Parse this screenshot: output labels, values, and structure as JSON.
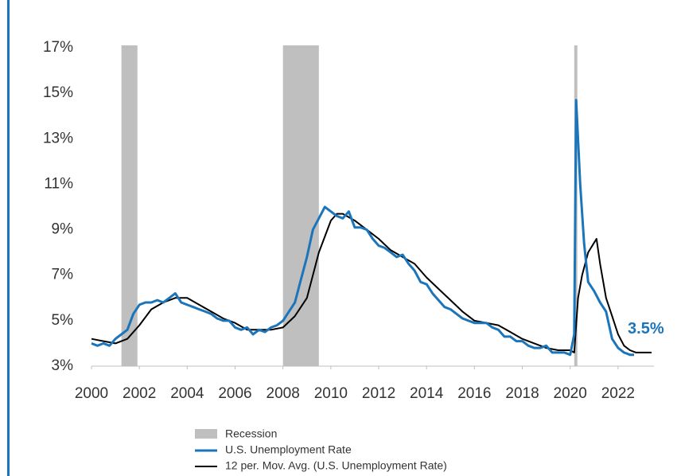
{
  "chart_data": {
    "type": "line",
    "xlim": [
      2000,
      2023.5
    ],
    "xticks": [
      2000,
      2002,
      2004,
      2006,
      2008,
      2010,
      2012,
      2014,
      2016,
      2018,
      2020,
      2022
    ],
    "ylim": [
      3,
      17
    ],
    "yticks": [
      {
        "value": 3,
        "label": "3%"
      },
      {
        "value": 5,
        "label": "5%"
      },
      {
        "value": 7,
        "label": "7%"
      },
      {
        "value": 9,
        "label": "9%"
      },
      {
        "value": 11,
        "label": "11%"
      },
      {
        "value": 13,
        "label": "13%"
      },
      {
        "value": 15,
        "label": "15%"
      },
      {
        "value": 17,
        "label": "17%"
      }
    ],
    "recession": {
      "name": "Recession",
      "color": "#bfbfbf",
      "ranges": [
        [
          2001.25,
          2001.92
        ],
        [
          2008.0,
          2009.5
        ],
        [
          2020.17,
          2020.3
        ]
      ]
    },
    "series": [
      {
        "name": "U.S. Unemployment Rate",
        "color": "#1b75bb",
        "x": [
          2000.0,
          2000.25,
          2000.5,
          2000.75,
          2001.0,
          2001.25,
          2001.5,
          2001.75,
          2002.0,
          2002.25,
          2002.5,
          2002.75,
          2003.0,
          2003.25,
          2003.5,
          2003.75,
          2004.0,
          2004.25,
          2004.5,
          2004.75,
          2005.0,
          2005.25,
          2005.5,
          2005.75,
          2006.0,
          2006.25,
          2006.5,
          2006.75,
          2007.0,
          2007.25,
          2007.5,
          2007.75,
          2008.0,
          2008.25,
          2008.5,
          2008.75,
          2009.0,
          2009.25,
          2009.5,
          2009.75,
          2010.0,
          2010.25,
          2010.5,
          2010.75,
          2011.0,
          2011.25,
          2011.5,
          2011.75,
          2012.0,
          2012.25,
          2012.5,
          2012.75,
          2013.0,
          2013.25,
          2013.5,
          2013.75,
          2014.0,
          2014.25,
          2014.5,
          2014.75,
          2015.0,
          2015.25,
          2015.5,
          2015.75,
          2016.0,
          2016.25,
          2016.5,
          2016.75,
          2017.0,
          2017.25,
          2017.5,
          2017.75,
          2018.0,
          2018.25,
          2018.5,
          2018.75,
          2019.0,
          2019.25,
          2019.5,
          2019.75,
          2020.0,
          2020.17,
          2020.25,
          2020.42,
          2020.58,
          2020.75,
          2021.0,
          2021.25,
          2021.5,
          2021.75,
          2022.0,
          2022.25,
          2022.5,
          2022.67
        ],
        "values": [
          4.0,
          3.9,
          4.0,
          3.9,
          4.2,
          4.4,
          4.6,
          5.3,
          5.7,
          5.8,
          5.8,
          5.9,
          5.8,
          6.0,
          6.2,
          5.8,
          5.7,
          5.6,
          5.5,
          5.4,
          5.3,
          5.1,
          5.0,
          5.0,
          4.7,
          4.6,
          4.7,
          4.4,
          4.6,
          4.5,
          4.7,
          4.8,
          5.0,
          5.4,
          5.8,
          6.8,
          7.8,
          9.0,
          9.5,
          10.0,
          9.8,
          9.6,
          9.5,
          9.8,
          9.1,
          9.1,
          9.0,
          8.6,
          8.3,
          8.2,
          8.0,
          7.8,
          7.9,
          7.5,
          7.2,
          6.7,
          6.6,
          6.2,
          5.9,
          5.6,
          5.5,
          5.3,
          5.1,
          5.0,
          4.9,
          4.9,
          4.9,
          4.7,
          4.6,
          4.3,
          4.3,
          4.1,
          4.1,
          3.9,
          3.8,
          3.8,
          3.9,
          3.6,
          3.6,
          3.6,
          3.5,
          4.4,
          14.7,
          11.0,
          8.4,
          6.7,
          6.3,
          5.8,
          5.4,
          4.2,
          3.8,
          3.6,
          3.5,
          3.5
        ],
        "value_labels": [
          null,
          null,
          null,
          null,
          null,
          null,
          null,
          null,
          null,
          null,
          null,
          null,
          null,
          null,
          null,
          null,
          null,
          null,
          null,
          null,
          null,
          null,
          null,
          null,
          null,
          null,
          null,
          null,
          null,
          null,
          null,
          null,
          null,
          null,
          null,
          null,
          null,
          null,
          null,
          null,
          null,
          null,
          null,
          null,
          null,
          null,
          null,
          null,
          null,
          null,
          null,
          null,
          null,
          null,
          null,
          null,
          null,
          null,
          null,
          null,
          null,
          null,
          null,
          null,
          null,
          null,
          null,
          null,
          null,
          null,
          null,
          null,
          null,
          null,
          null,
          null,
          null,
          null,
          null,
          null,
          null,
          null,
          null,
          null,
          null,
          null,
          null,
          null,
          null,
          null,
          null,
          null,
          null,
          "3.5%"
        ]
      },
      {
        "name": "12 per. Mov. Avg. (U.S. Unemployment Rate)",
        "color": "#000000",
        "x": [
          2000.0,
          2000.5,
          2001.0,
          2001.5,
          2002.0,
          2002.5,
          2003.0,
          2003.5,
          2004.0,
          2004.5,
          2005.0,
          2005.5,
          2006.0,
          2006.5,
          2007.0,
          2007.5,
          2008.0,
          2008.5,
          2009.0,
          2009.5,
          2010.0,
          2010.25,
          2010.5,
          2011.0,
          2011.5,
          2012.0,
          2012.5,
          2013.0,
          2013.5,
          2014.0,
          2014.5,
          2015.0,
          2015.5,
          2016.0,
          2016.5,
          2017.0,
          2017.5,
          2018.0,
          2018.5,
          2019.0,
          2019.5,
          2020.0,
          2020.17,
          2020.33,
          2020.5,
          2020.75,
          2021.1,
          2021.25,
          2021.5,
          2021.75,
          2022.0,
          2022.25,
          2022.5,
          2022.75,
          2023.0,
          2023.4
        ],
        "values": [
          4.2,
          4.1,
          4.0,
          4.2,
          4.8,
          5.5,
          5.8,
          6.0,
          6.0,
          5.7,
          5.4,
          5.1,
          4.9,
          4.6,
          4.6,
          4.6,
          4.7,
          5.2,
          6.0,
          8.0,
          9.4,
          9.7,
          9.7,
          9.4,
          9.0,
          8.6,
          8.1,
          7.8,
          7.5,
          6.9,
          6.4,
          5.9,
          5.4,
          5.0,
          4.9,
          4.8,
          4.5,
          4.2,
          4.0,
          3.8,
          3.7,
          3.7,
          3.6,
          6.0,
          7.0,
          8.0,
          8.6,
          7.5,
          6.0,
          5.2,
          4.4,
          3.9,
          3.7,
          3.6,
          3.6,
          3.6
        ]
      }
    ]
  }
}
